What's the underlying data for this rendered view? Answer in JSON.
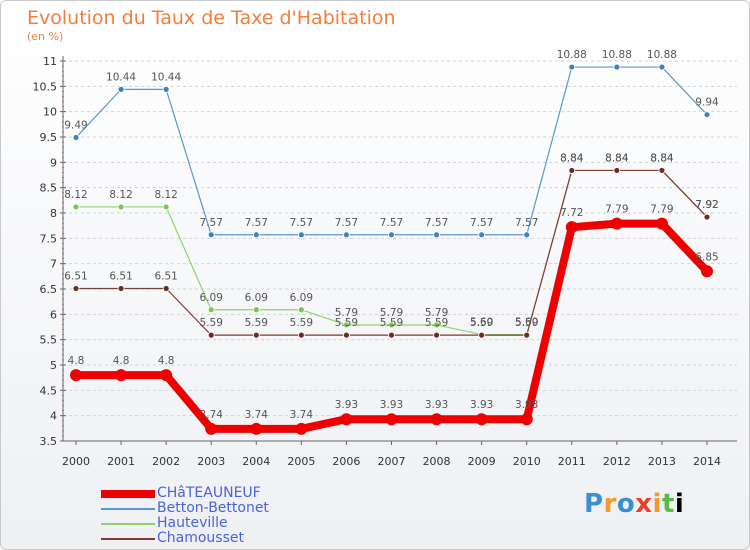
{
  "title": "Evolution du Taux de Taxe d'Habitation",
  "subtitle": "(en %)",
  "logo": [
    "P",
    "r",
    "o",
    "x",
    "i",
    "t",
    "i"
  ],
  "chart_data": {
    "type": "line",
    "x": [
      "2000",
      "2001",
      "2002",
      "2003",
      "2004",
      "2005",
      "2006",
      "2007",
      "2008",
      "2009",
      "2010",
      "2011",
      "2012",
      "2013",
      "2014"
    ],
    "ylim": [
      3.5,
      11
    ],
    "yticks": [
      "3.5",
      "4",
      "4.5",
      "5",
      "5.5",
      "6",
      "6.5",
      "7",
      "7.5",
      "8",
      "8.5",
      "9",
      "9.5",
      "10",
      "10.5",
      "11"
    ],
    "series": [
      {
        "name": "Betton-Bettonet",
        "color": "#5b96cc",
        "dot": "#3f82c0",
        "width": 1.2,
        "values": [
          9.49,
          10.44,
          10.44,
          7.57,
          7.57,
          7.57,
          7.57,
          7.57,
          7.57,
          7.57,
          7.57,
          10.88,
          10.88,
          10.88,
          9.94
        ],
        "labels": [
          "9.49",
          "10.44",
          "10.44",
          "7.57",
          "7.57",
          "7.57",
          "7.57",
          "7.57",
          "7.57",
          "7.57",
          "7.57",
          "10.88",
          "10.88",
          "10.88",
          "9.94"
        ]
      },
      {
        "name": "Hauteville",
        "color": "#8fd46a",
        "dot": "#7cc44f",
        "width": 1.2,
        "values": [
          8.12,
          8.12,
          8.12,
          6.09,
          6.09,
          6.09,
          5.79,
          5.79,
          5.79,
          5.6,
          5.6,
          8.84,
          8.84,
          8.84,
          7.92
        ],
        "labels": [
          "8.12",
          "8.12",
          "8.12",
          "6.09",
          "6.09",
          "6.09",
          "5.79",
          "5.79",
          "5.79",
          "5.60",
          "5.60",
          "8.84",
          "8.84",
          "8.84",
          "7.92"
        ]
      },
      {
        "name": "Chamousset",
        "color": "#7a3c33",
        "dot": "#6a2e25",
        "width": 1.2,
        "values": [
          6.51,
          6.51,
          6.51,
          5.59,
          5.59,
          5.59,
          5.59,
          5.59,
          5.59,
          5.59,
          5.59,
          8.84,
          8.84,
          8.84,
          7.92
        ],
        "labels": [
          "6.51",
          "6.51",
          "6.51",
          "5.59",
          "5.59",
          "5.59",
          "5.59",
          "5.59",
          "5.59",
          "5.59",
          "5.59",
          "8.84",
          "8.84",
          "8.84",
          "7.92"
        ]
      },
      {
        "name": "CHâTEAUNEUF",
        "color": "#ee0000",
        "dot": "#ee0000",
        "width": 8,
        "values": [
          4.8,
          4.8,
          4.8,
          3.74,
          3.74,
          3.74,
          3.93,
          3.93,
          3.93,
          3.93,
          3.93,
          7.72,
          7.79,
          7.79,
          6.85
        ],
        "labels": [
          "4.8",
          "4.8",
          "4.8",
          "3.74",
          "3.74",
          "3.74",
          "3.93",
          "3.93",
          "3.93",
          "3.93",
          "3.93",
          "7.72",
          "7.79",
          "7.79",
          "6.85"
        ]
      }
    ]
  },
  "legend": [
    {
      "label": "CHâTEAUNEUF",
      "color": "#ee0000",
      "thick": true
    },
    {
      "label": "Betton-Bettonet",
      "color": "#5b96cc",
      "thick": false
    },
    {
      "label": "Hauteville",
      "color": "#8fd46a",
      "thick": false
    },
    {
      "label": "Chamousset",
      "color": "#7a3c33",
      "thick": false
    }
  ]
}
